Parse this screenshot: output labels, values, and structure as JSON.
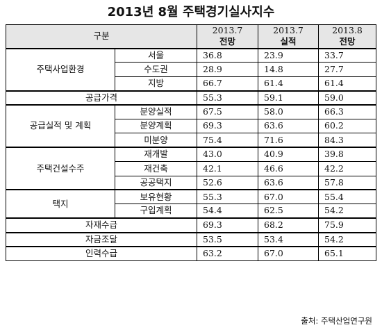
{
  "title": "2013년 8월 주택경기실사지수",
  "header": {
    "category": "구분",
    "cols": [
      {
        "period": "2013.7",
        "type": "전망"
      },
      {
        "period": "2013.7",
        "type": "실적"
      },
      {
        "period": "2013.8",
        "type": "전망"
      }
    ]
  },
  "groups": {
    "housing_env": {
      "label": "주택사업환경",
      "rows": [
        {
          "label": "서울",
          "v": [
            "36.8",
            "23.9",
            "33.7"
          ]
        },
        {
          "label": "수도권",
          "v": [
            "28.9",
            "14.8",
            "27.7"
          ]
        },
        {
          "label": "지방",
          "v": [
            "66.7",
            "61.4",
            "61.4"
          ]
        }
      ]
    },
    "supply_price": {
      "label": "공급가격",
      "v": [
        "55.3",
        "59.1",
        "59.0"
      ]
    },
    "supply_perf": {
      "label": "공급실적 및 계획",
      "rows": [
        {
          "label": "분양실적",
          "v": [
            "67.5",
            "58.0",
            "66.3"
          ]
        },
        {
          "label": "분양계획",
          "v": [
            "69.3",
            "63.6",
            "60.2"
          ]
        },
        {
          "label": "미분양",
          "v": [
            "75.4",
            "71.6",
            "84.3"
          ]
        }
      ]
    },
    "construction": {
      "label": "주택건설수주",
      "rows": [
        {
          "label": "재개발",
          "v": [
            "43.0",
            "40.9",
            "39.8"
          ]
        },
        {
          "label": "재건축",
          "v": [
            "42.1",
            "46.6",
            "42.2"
          ]
        },
        {
          "label": "공공택지",
          "v": [
            "52.6",
            "63.6",
            "57.8"
          ]
        }
      ]
    },
    "land": {
      "label": "택지",
      "rows": [
        {
          "label": "보유현황",
          "v": [
            "55.3",
            "67.0",
            "55.4"
          ]
        },
        {
          "label": "구입계획",
          "v": [
            "54.4",
            "62.5",
            "54.2"
          ]
        }
      ]
    },
    "materials": {
      "label": "자재수급",
      "v": [
        "69.3",
        "68.2",
        "75.9"
      ]
    },
    "funding": {
      "label": "자금조달",
      "v": [
        "53.5",
        "53.4",
        "54.2"
      ]
    },
    "labor": {
      "label": "인력수급",
      "v": [
        "63.2",
        "67.0",
        "65.1"
      ]
    }
  },
  "source": "출처: 주택산업연구원"
}
